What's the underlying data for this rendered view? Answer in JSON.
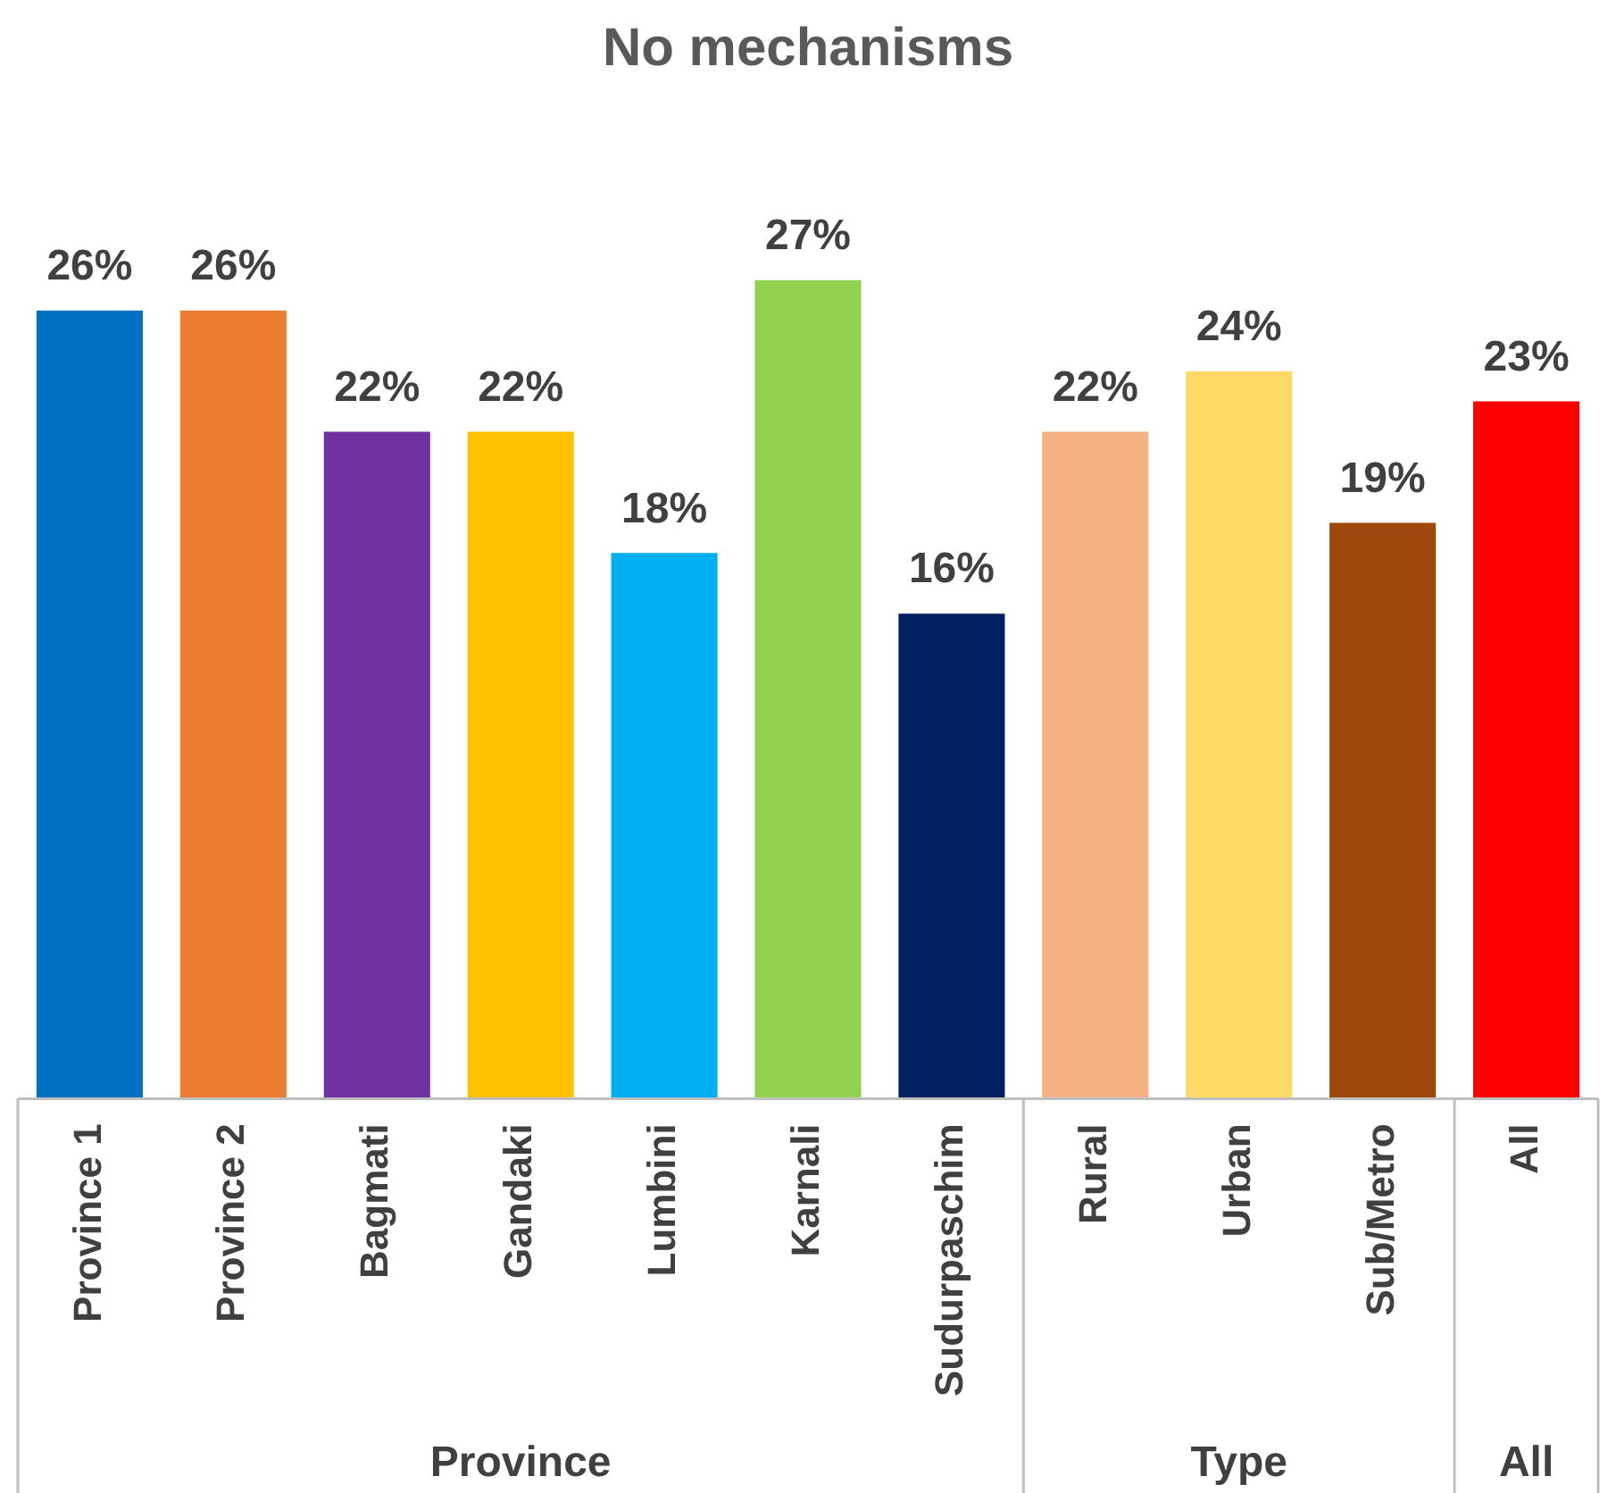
{
  "chart_data": {
    "type": "bar",
    "title": "No mechanisms",
    "categories": [
      "Province 1",
      "Province 2",
      "Bagmati",
      "Gandaki",
      "Lumbini",
      "Karnali",
      "Sudurpaschim",
      "Rural",
      "Urban",
      "Sub/Metro",
      "All"
    ],
    "values": [
      26,
      26,
      22,
      22,
      18,
      27,
      16,
      22,
      24,
      19,
      23
    ],
    "colors": [
      "#0070c0",
      "#ed7d31",
      "#7030a0",
      "#ffc000",
      "#00b0f0",
      "#92d050",
      "#002060",
      "#f4b183",
      "#ffd966",
      "#9e480e",
      "#ff0000"
    ],
    "value_labels": [
      "26%",
      "26%",
      "22%",
      "22%",
      "18%",
      "27%",
      "16%",
      "22%",
      "24%",
      "19%",
      "23%"
    ],
    "annotations": [
      "Province",
      "Type",
      "All"
    ],
    "legend": false,
    "grid": false
  }
}
